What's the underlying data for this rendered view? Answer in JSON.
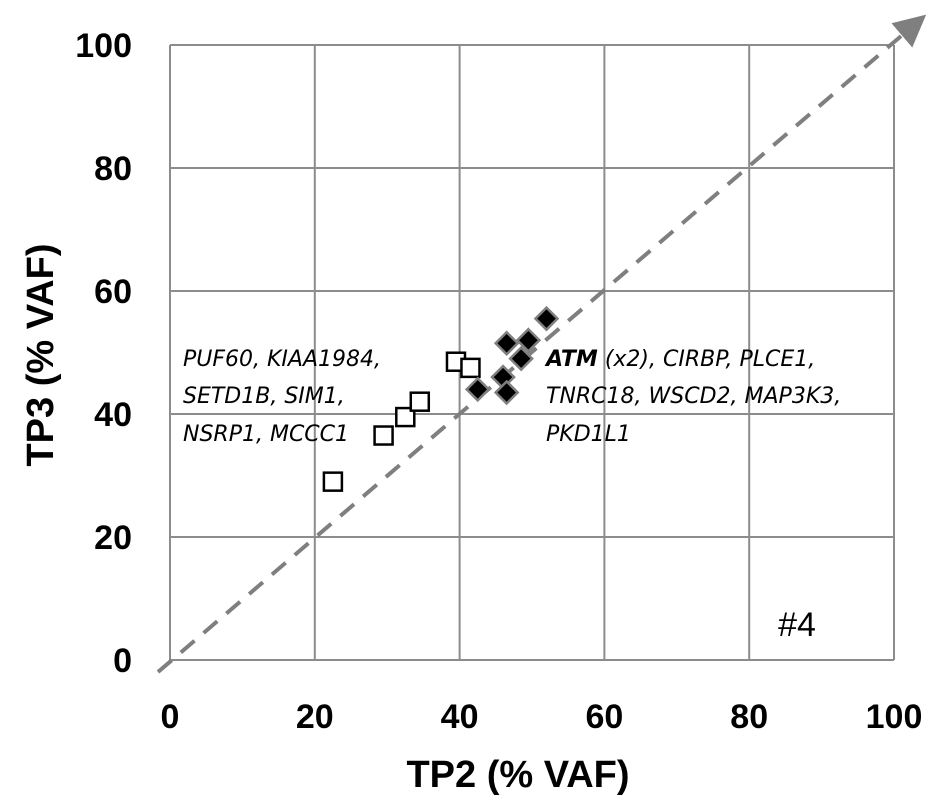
{
  "chart_data": {
    "type": "scatter",
    "xlabel": "TP2 (% VAF)",
    "ylabel": "TP3 (% VAF)",
    "xlim": [
      0,
      100
    ],
    "ylim": [
      0,
      100
    ],
    "xticks": [
      "0",
      "20",
      "40",
      "60",
      "80",
      "100"
    ],
    "yticks": [
      "0",
      "20",
      "40",
      "60",
      "80",
      "100"
    ],
    "grid": true,
    "panel_label": "#4",
    "diagonal": {
      "from": [
        0,
        0
      ],
      "to": [
        100,
        100
      ],
      "style": "dashed",
      "color": "#7f7f7f"
    },
    "series": [
      {
        "marker": "square-open",
        "color": "#000000",
        "points": [
          {
            "x": 22.5,
            "y": 29.0
          },
          {
            "x": 29.5,
            "y": 36.5
          },
          {
            "x": 32.5,
            "y": 39.5
          },
          {
            "x": 34.5,
            "y": 42.0
          },
          {
            "x": 39.5,
            "y": 48.5
          },
          {
            "x": 41.5,
            "y": 47.5
          }
        ]
      },
      {
        "marker": "diamond-filled",
        "color": "#000000",
        "points": [
          {
            "x": 42.5,
            "y": 44.0
          },
          {
            "x": 46.0,
            "y": 46.0
          },
          {
            "x": 46.5,
            "y": 43.5
          },
          {
            "x": 46.5,
            "y": 51.5
          },
          {
            "x": 48.5,
            "y": 49.0
          },
          {
            "x": 49.5,
            "y": 52.0
          },
          {
            "x": 52.0,
            "y": 55.5
          }
        ]
      }
    ],
    "annotations": {
      "left": {
        "lines": [
          "PUF60, KIAA1984,",
          "SETD1B, SIM1,",
          "NSRP1, MCCC1"
        ]
      },
      "right": {
        "bold": "ATM",
        "line1_rest": " (x2), CIRBP, PLCE1,",
        "lines": [
          "TNRC18, WSCD2, MAP3K3,",
          "PKD1L1"
        ]
      }
    }
  }
}
